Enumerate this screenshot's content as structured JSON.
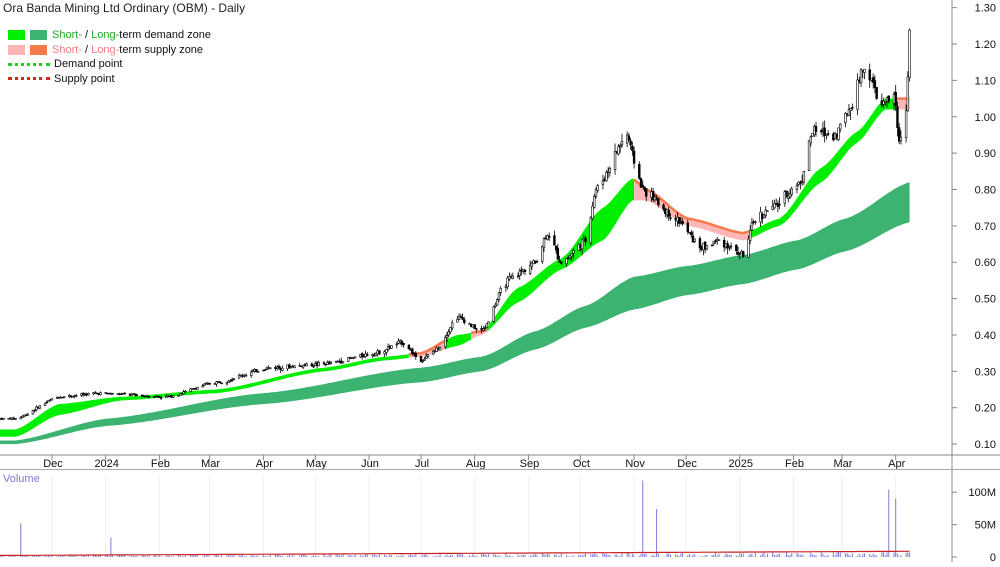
{
  "title": "Ora Banda Mining Ltd Ordinary (OBM) - Daily",
  "legend": {
    "demand_zone": {
      "short": "Short-",
      "sep": " / ",
      "long": "Long-",
      "rest": "term demand zone"
    },
    "supply_zone": {
      "short": "Short-",
      "sep": " / ",
      "long": "Long-",
      "rest": "term supply zone"
    },
    "demand_point": "Demand point",
    "supply_point": "Supply point"
  },
  "colors": {
    "short_demand": "#00ee00",
    "long_demand": "#3cb371",
    "short_supply": "#ffb6b6",
    "long_supply": "#f47a4a",
    "demand_point": "#22cc22",
    "supply_point": "#dd2222",
    "candle": "#000000",
    "volume_bar": "#7b7bd9",
    "volume_avg": "#cc2222",
    "grid": "#d8d8d8",
    "legend_green_text": "#22aa22",
    "legend_red_text": "#f08080"
  },
  "chart_data": {
    "type": "candlestick",
    "title": "Ora Banda Mining Ltd Ordinary (OBM) - Daily",
    "x_tick_labels": [
      "Dec",
      "2024",
      "Feb",
      "Mar",
      "Apr",
      "May",
      "Jun",
      "Jul",
      "Aug",
      "Sep",
      "Oct",
      "Nov",
      "Dec",
      "2025",
      "Feb",
      "Mar",
      "Apr"
    ],
    "y_ticks": [
      0.1,
      0.2,
      0.3,
      0.4,
      0.5,
      0.6,
      0.7,
      0.8,
      0.9,
      1.0,
      1.1,
      1.2,
      1.3
    ],
    "y_tick_labels": [
      "0.10",
      "0.20",
      "0.30",
      "0.40",
      "0.50",
      "0.60",
      "0.70",
      "0.80",
      "0.90",
      "1.00",
      "1.10",
      "1.20",
      "1.30"
    ],
    "ylim": [
      0.07,
      1.31
    ],
    "price_key_points": [
      {
        "date": "2023-11-10",
        "close": 0.17
      },
      {
        "date": "2023-12-05",
        "close": 0.23
      },
      {
        "date": "2023-12-28",
        "close": 0.24
      },
      {
        "date": "2024-02-05",
        "close": 0.23
      },
      {
        "date": "2024-03-05",
        "close": 0.27
      },
      {
        "date": "2024-04-05",
        "close": 0.31
      },
      {
        "date": "2024-05-06",
        "close": 0.32
      },
      {
        "date": "2024-06-05",
        "close": 0.35
      },
      {
        "date": "2024-06-20",
        "close": 0.38
      },
      {
        "date": "2024-07-01",
        "close": 0.33
      },
      {
        "date": "2024-07-10",
        "close": 0.36
      },
      {
        "date": "2024-07-22",
        "close": 0.45
      },
      {
        "date": "2024-08-05",
        "close": 0.41
      },
      {
        "date": "2024-08-20",
        "close": 0.55
      },
      {
        "date": "2024-09-05",
        "close": 0.6
      },
      {
        "date": "2024-09-12",
        "close": 0.68
      },
      {
        "date": "2024-09-20",
        "close": 0.6
      },
      {
        "date": "2024-10-04",
        "close": 0.66
      },
      {
        "date": "2024-10-10",
        "close": 0.8
      },
      {
        "date": "2024-10-28",
        "close": 0.95
      },
      {
        "date": "2024-11-01",
        "close": 0.88
      },
      {
        "date": "2024-11-06",
        "close": 0.8
      },
      {
        "date": "2024-11-25",
        "close": 0.72
      },
      {
        "date": "2024-12-10",
        "close": 0.64
      },
      {
        "date": "2024-12-20",
        "close": 0.66
      },
      {
        "date": "2025-01-03",
        "close": 0.62
      },
      {
        "date": "2025-01-10",
        "close": 0.72
      },
      {
        "date": "2025-01-20",
        "close": 0.75
      },
      {
        "date": "2025-02-05",
        "close": 0.82
      },
      {
        "date": "2025-02-12",
        "close": 0.96
      },
      {
        "date": "2025-02-25",
        "close": 0.95
      },
      {
        "date": "2025-03-05",
        "close": 1.02
      },
      {
        "date": "2025-03-14",
        "close": 1.14
      },
      {
        "date": "2025-03-24",
        "close": 1.03
      },
      {
        "date": "2025-03-31",
        "close": 1.06
      },
      {
        "date": "2025-04-03",
        "close": 0.93
      },
      {
        "date": "2025-04-07",
        "close": 1.02
      },
      {
        "date": "2025-04-09",
        "close": 1.23
      }
    ],
    "short_term_zone_key_points": [
      {
        "date": "2023-11-10",
        "low": 0.12,
        "high": 0.14
      },
      {
        "date": "2023-12-05",
        "low": 0.18,
        "high": 0.21
      },
      {
        "date": "2024-01-10",
        "low": 0.22,
        "high": 0.23
      },
      {
        "date": "2024-03-05",
        "low": 0.24,
        "high": 0.25
      },
      {
        "date": "2024-05-06",
        "low": 0.3,
        "high": 0.31
      },
      {
        "date": "2024-06-10",
        "low": 0.33,
        "high": 0.34
      },
      {
        "date": "2024-07-01",
        "low": 0.34,
        "high": 0.35
      },
      {
        "date": "2024-07-22",
        "low": 0.37,
        "high": 0.4
      },
      {
        "date": "2024-08-05",
        "low": 0.4,
        "high": 0.41
      },
      {
        "date": "2024-08-26",
        "low": 0.49,
        "high": 0.53
      },
      {
        "date": "2024-09-20",
        "low": 0.58,
        "high": 0.61
      },
      {
        "date": "2024-10-14",
        "low": 0.66,
        "high": 0.75
      },
      {
        "date": "2024-10-31",
        "low": 0.77,
        "high": 0.83
      },
      {
        "date": "2024-11-08",
        "low": 0.77,
        "high": 0.8
      },
      {
        "date": "2024-12-02",
        "low": 0.7,
        "high": 0.72
      },
      {
        "date": "2025-01-03",
        "low": 0.66,
        "high": 0.68
      },
      {
        "date": "2025-01-24",
        "low": 0.7,
        "high": 0.72
      },
      {
        "date": "2025-02-17",
        "low": 0.82,
        "high": 0.86
      },
      {
        "date": "2025-03-10",
        "low": 0.93,
        "high": 0.96
      },
      {
        "date": "2025-03-26",
        "low": 1.02,
        "high": 1.05
      },
      {
        "date": "2025-04-09",
        "low": 1.02,
        "high": 1.05
      }
    ],
    "short_term_supply_periods": [
      {
        "start": "2024-06-24",
        "end": "2024-07-12"
      },
      {
        "start": "2024-07-30",
        "end": "2024-08-07"
      },
      {
        "start": "2024-11-01",
        "end": "2025-01-06"
      },
      {
        "start": "2025-04-01",
        "end": "2025-04-09"
      }
    ],
    "long_term_zone_key_points": [
      {
        "date": "2023-11-10",
        "low": 0.1,
        "high": 0.11
      },
      {
        "date": "2024-01-02",
        "low": 0.15,
        "high": 0.17
      },
      {
        "date": "2024-04-01",
        "low": 0.21,
        "high": 0.24
      },
      {
        "date": "2024-07-01",
        "low": 0.27,
        "high": 0.31
      },
      {
        "date": "2024-08-05",
        "low": 0.3,
        "high": 0.34
      },
      {
        "date": "2024-09-05",
        "low": 0.36,
        "high": 0.41
      },
      {
        "date": "2024-10-04",
        "low": 0.42,
        "high": 0.48
      },
      {
        "date": "2024-11-01",
        "low": 0.47,
        "high": 0.56
      },
      {
        "date": "2024-12-02",
        "low": 0.51,
        "high": 0.59
      },
      {
        "date": "2025-01-03",
        "low": 0.54,
        "high": 0.62
      },
      {
        "date": "2025-02-03",
        "low": 0.58,
        "high": 0.66
      },
      {
        "date": "2025-03-03",
        "low": 0.63,
        "high": 0.72
      },
      {
        "date": "2025-04-09",
        "low": 0.71,
        "high": 0.82
      }
    ],
    "volume": {
      "label": "Volume",
      "y_tick_labels": [
        "0",
        "50M",
        "100M"
      ],
      "y_ticks": [
        0,
        50,
        100
      ],
      "unit": "millions",
      "baseline_daily": 2,
      "average_line": 4,
      "spikes": [
        {
          "date": "2023-11-13",
          "value": 52
        },
        {
          "date": "2024-01-04",
          "value": 30
        },
        {
          "date": "2024-11-06",
          "value": 118
        },
        {
          "date": "2024-11-14",
          "value": 74
        },
        {
          "date": "2025-03-28",
          "value": 104
        },
        {
          "date": "2025-04-01",
          "value": 90
        }
      ]
    }
  }
}
